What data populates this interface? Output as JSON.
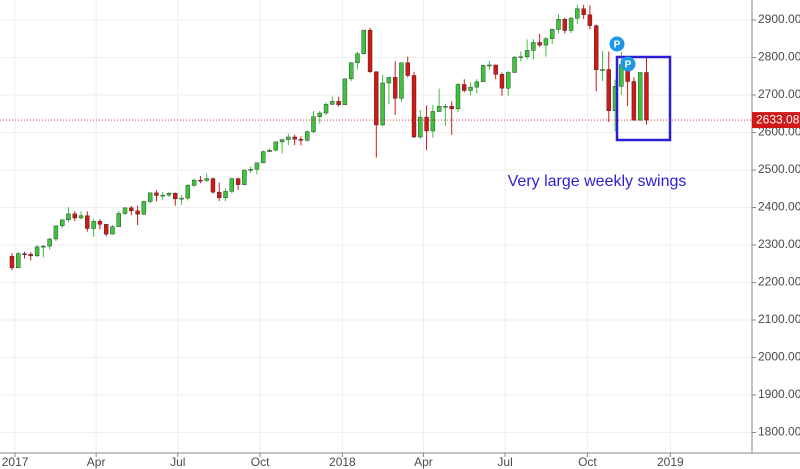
{
  "chart_data": {
    "type": "candlestick",
    "annotation": "Very large weekly swings",
    "markers": [
      "P",
      "P"
    ],
    "last_price": 2633.08,
    "up_color": "#3cc43c",
    "down_color": "#d01818",
    "grid": true,
    "xlim": [
      -2.4,
      117.3
    ],
    "xticks": [
      {
        "value": 0,
        "label": "2017"
      },
      {
        "value": 12.9,
        "label": "Apr"
      },
      {
        "value": 25.9,
        "label": "Jul"
      },
      {
        "value": 39,
        "label": "Oct"
      },
      {
        "value": 52.1,
        "label": "2018"
      },
      {
        "value": 65,
        "label": "Apr"
      },
      {
        "value": 78,
        "label": "Jul"
      },
      {
        "value": 91.1,
        "label": "Oct"
      },
      {
        "value": 104.3,
        "label": "2019"
      }
    ],
    "ylim": [
      1745.3,
      2953.3
    ],
    "yticks": [
      {
        "value": 1800,
        "label": "1800.00"
      },
      {
        "value": 1900,
        "label": "1900.00"
      },
      {
        "value": 2000,
        "label": "2000.00"
      },
      {
        "value": 2100,
        "label": "2100.00"
      },
      {
        "value": 2200,
        "label": "2200.00"
      },
      {
        "value": 2300,
        "label": "2300.00"
      },
      {
        "value": 2400,
        "label": "2400.00"
      },
      {
        "value": 2500,
        "label": "2500.00"
      },
      {
        "value": 2600,
        "label": "2600.00"
      },
      {
        "value": 2700,
        "label": "2700.00"
      },
      {
        "value": 2800,
        "label": "2800.00"
      },
      {
        "value": 2900,
        "label": "2900.00"
      }
    ],
    "open": [
      2270,
      2239,
      2277,
      2275,
      2271,
      2295,
      2297,
      2316,
      2351,
      2367,
      2383,
      2372,
      2378,
      2344,
      2363,
      2355,
      2329,
      2349,
      2384,
      2399,
      2391,
      2382,
      2416,
      2439,
      2432,
      2433,
      2438,
      2423,
      2425,
      2459,
      2473,
      2472,
      2477,
      2441,
      2426,
      2443,
      2477,
      2461,
      2500,
      2502,
      2519,
      2549,
      2553,
      2575,
      2581,
      2588,
      2582,
      2579,
      2602,
      2642,
      2652,
      2675,
      2683,
      2674,
      2743,
      2786,
      2810,
      2873,
      2762,
      2620,
      2732,
      2747,
      2691,
      2786,
      2752,
      2588,
      2641,
      2604,
      2656,
      2670,
      2670,
      2663,
      2728,
      2712,
      2721,
      2735,
      2779,
      2780,
      2755,
      2718,
      2760,
      2801,
      2802,
      2819,
      2840,
      2833,
      2850,
      2875,
      2902,
      2872,
      2905,
      2930,
      2914,
      2885,
      2767,
      2768,
      2658,
      2723,
      2781,
      2736,
      2633,
      2760
    ],
    "high": [
      2278,
      2282,
      2282,
      2281,
      2300,
      2300,
      2319,
      2352,
      2368,
      2401,
      2390,
      2390,
      2390,
      2370,
      2369,
      2356,
      2353,
      2391,
      2399,
      2404,
      2405,
      2418,
      2440,
      2446,
      2441,
      2442,
      2440,
      2433,
      2463,
      2477,
      2484,
      2490,
      2480,
      2466,
      2451,
      2480,
      2480,
      2501,
      2509,
      2520,
      2552,
      2557,
      2576,
      2582,
      2597,
      2594,
      2590,
      2605,
      2657,
      2657,
      2680,
      2695,
      2695,
      2744,
      2787,
      2815,
      2873,
      2879,
      2763,
      2754,
      2748,
      2790,
      2787,
      2802,
      2762,
      2660,
      2672,
      2674,
      2717,
      2677,
      2683,
      2732,
      2742,
      2734,
      2742,
      2779,
      2791,
      2781,
      2760,
      2764,
      2804,
      2816,
      2848,
      2849,
      2863,
      2855,
      2877,
      2916,
      2906,
      2908,
      2941,
      2940,
      2939,
      2888,
      2817,
      2816,
      2741,
      2816,
      2784,
      2747,
      2760,
      2800
    ],
    "low": [
      2233,
      2245,
      2264,
      2259,
      2268,
      2267,
      2288,
      2310,
      2345,
      2361,
      2364,
      2368,
      2336,
      2322,
      2342,
      2323,
      2328,
      2348,
      2380,
      2380,
      2353,
      2380,
      2411,
      2416,
      2419,
      2428,
      2405,
      2407,
      2419,
      2455,
      2465,
      2468,
      2437,
      2417,
      2417,
      2437,
      2447,
      2459,
      2492,
      2488,
      2518,
      2547,
      2550,
      2544,
      2566,
      2566,
      2566,
      2576,
      2597,
      2624,
      2646,
      2673,
      2669,
      2682,
      2737,
      2768,
      2808,
      2759,
      2533,
      2617,
      2675,
      2647,
      2682,
      2747,
      2585,
      2583,
      2553,
      2586,
      2655,
      2617,
      2594,
      2655,
      2707,
      2699,
      2705,
      2735,
      2766,
      2742,
      2698,
      2698,
      2760,
      2789,
      2795,
      2795,
      2828,
      2802,
      2835,
      2864,
      2864,
      2865,
      2889,
      2903,
      2875,
      2710,
      2737,
      2628,
      2603,
      2700,
      2670,
      2631,
      2631,
      2621
    ],
    "close": [
      2239,
      2277,
      2275,
      2271,
      2295,
      2297,
      2316,
      2351,
      2367,
      2383,
      2372,
      2378,
      2344,
      2363,
      2355,
      2329,
      2349,
      2384,
      2399,
      2391,
      2382,
      2416,
      2439,
      2432,
      2433,
      2438,
      2423,
      2425,
      2459,
      2473,
      2472,
      2477,
      2441,
      2426,
      2443,
      2477,
      2461,
      2500,
      2502,
      2519,
      2549,
      2553,
      2575,
      2581,
      2588,
      2582,
      2579,
      2602,
      2642,
      2652,
      2675,
      2683,
      2674,
      2743,
      2786,
      2810,
      2873,
      2762,
      2620,
      2732,
      2747,
      2691,
      2786,
      2752,
      2588,
      2641,
      2604,
      2656,
      2670,
      2670,
      2663,
      2728,
      2712,
      2721,
      2735,
      2779,
      2780,
      2755,
      2718,
      2760,
      2801,
      2802,
      2819,
      2840,
      2833,
      2850,
      2875,
      2902,
      2872,
      2905,
      2930,
      2914,
      2885,
      2767,
      2768,
      2658,
      2723,
      2781,
      2736,
      2633,
      2760,
      2633.08
    ]
  }
}
